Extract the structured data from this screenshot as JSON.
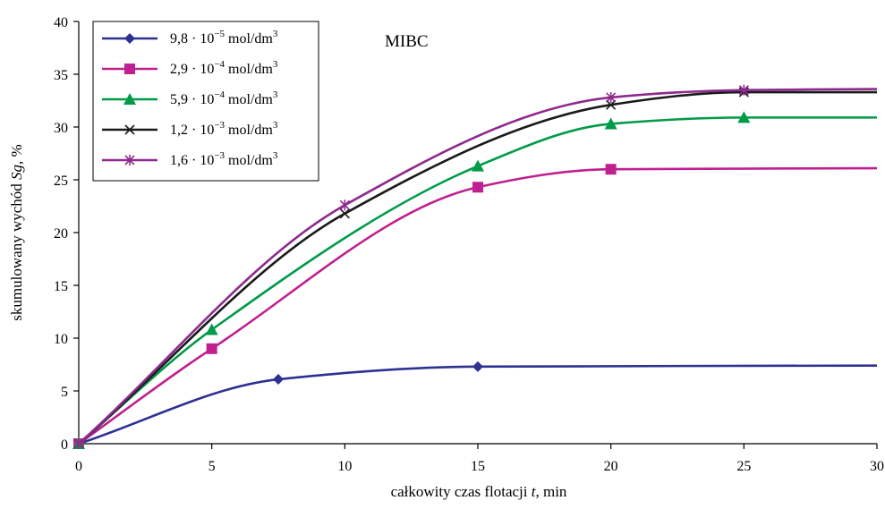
{
  "chart_data": {
    "type": "line",
    "title": "",
    "annotation": "MIBC",
    "xlabel_main": "całkowity czas flotacji ",
    "xlabel_var": "t",
    "xlabel_unit": ", min",
    "ylabel_main": "skumulowany wychód ",
    "ylabel_var": "Sg",
    "ylabel_unit": ", %",
    "xlim": [
      0,
      30
    ],
    "ylim": [
      0,
      40
    ],
    "xticks": [
      0,
      5,
      10,
      15,
      20,
      25,
      30
    ],
    "yticks": [
      0,
      5,
      10,
      15,
      20,
      25,
      30,
      35,
      40
    ],
    "grid": false,
    "legend_placement": "top-left",
    "series": [
      {
        "label_mantissa": "9,8 · 10",
        "label_exp": "−5",
        "label_unit": " mol/dm",
        "label_unit_exp": "3",
        "color": "#2e3192",
        "marker": "diamond",
        "points": [
          [
            0,
            0
          ],
          [
            7.5,
            6.1
          ],
          [
            15,
            7.3
          ],
          [
            30,
            7.4
          ]
        ]
      },
      {
        "label_mantissa": "2,9 · 10",
        "label_exp": "−4",
        "label_unit": " mol/dm",
        "label_unit_exp": "3",
        "color": "#c0208f",
        "marker": "square",
        "points": [
          [
            0,
            0
          ],
          [
            5,
            9.0
          ],
          [
            15,
            24.3
          ],
          [
            20,
            26.0
          ],
          [
            30,
            26.1
          ]
        ]
      },
      {
        "label_mantissa": "5,9 · 10",
        "label_exp": "−4",
        "label_unit": " mol/dm",
        "label_unit_exp": "3",
        "color": "#009b48",
        "marker": "triangle",
        "points": [
          [
            0,
            0
          ],
          [
            5,
            10.8
          ],
          [
            15,
            26.3
          ],
          [
            20,
            30.3
          ],
          [
            25,
            30.9
          ],
          [
            30,
            30.9
          ]
        ]
      },
      {
        "label_mantissa": "1,2 · 10",
        "label_exp": "−3",
        "label_unit": " mol/dm",
        "label_unit_exp": "3",
        "color": "#1a1a1a",
        "marker": "x",
        "points": [
          [
            0,
            0
          ],
          [
            10,
            21.8
          ],
          [
            20,
            32.1
          ],
          [
            25,
            33.3
          ],
          [
            30,
            33.3
          ]
        ]
      },
      {
        "label_mantissa": "1,6 · 10",
        "label_exp": "−3",
        "label_unit": " mol/dm",
        "label_unit_exp": "3",
        "color": "#8e2a8e",
        "marker": "star",
        "points": [
          [
            0,
            0
          ],
          [
            10,
            22.6
          ],
          [
            20,
            32.8
          ],
          [
            25,
            33.5
          ],
          [
            30,
            33.6
          ]
        ]
      }
    ]
  }
}
